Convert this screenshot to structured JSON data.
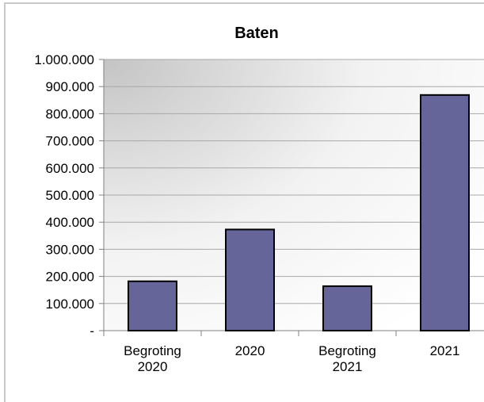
{
  "chart_data": {
    "type": "bar",
    "title": "Baten",
    "xlabel": "",
    "ylabel": "",
    "categories": [
      [
        "Begroting",
        "2020"
      ],
      [
        "2020"
      ],
      [
        "Begroting",
        "2021"
      ],
      [
        "2021"
      ]
    ],
    "values": [
      182000,
      373000,
      164000,
      869000
    ],
    "ylim": [
      0,
      1000000
    ],
    "yticks": [
      0,
      100000,
      200000,
      300000,
      400000,
      500000,
      600000,
      700000,
      800000,
      900000,
      1000000
    ],
    "ytick_labels": [
      "-",
      "100.000",
      "200.000",
      "300.000",
      "400.000",
      "500.000",
      "600.000",
      "700.000",
      "800.000",
      "900.000",
      "1.000.000"
    ],
    "grid": true,
    "legend": "none",
    "colors": {
      "bar_fill": "#65659a",
      "bar_stroke": "#000000",
      "grid": "#a8a8a8",
      "axis": "#808080",
      "plot_bg_dark": "#c4c4c4",
      "plot_bg_light": "#ffffff"
    }
  }
}
